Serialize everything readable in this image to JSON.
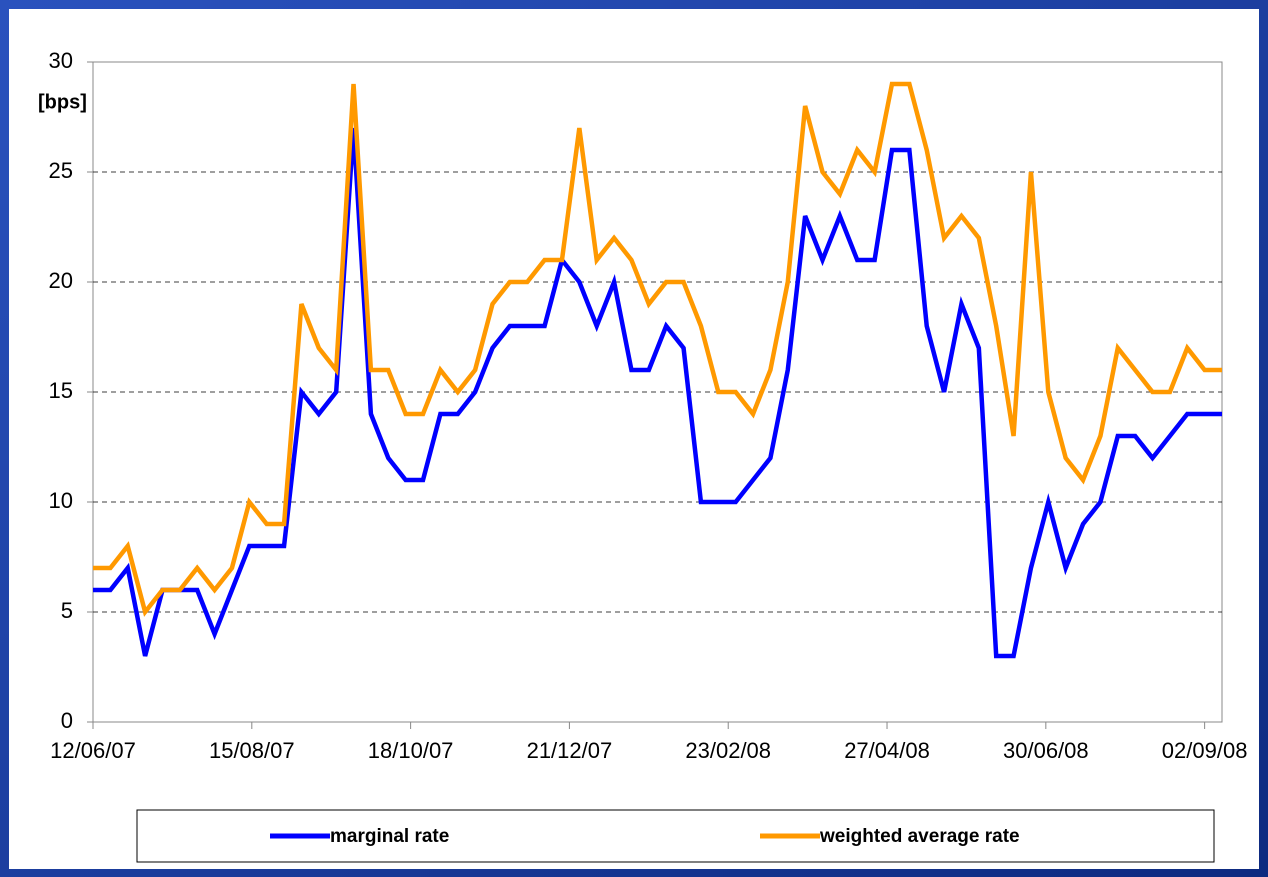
{
  "chart_data": {
    "type": "line",
    "y_label": "[bps]",
    "x": [
      "2007-06-12",
      "2007-06-19",
      "2007-06-26",
      "2007-07-03",
      "2007-07-10",
      "2007-07-17",
      "2007-07-24",
      "2007-07-31",
      "2007-08-07",
      "2007-08-14",
      "2007-08-21",
      "2007-08-28",
      "2007-09-04",
      "2007-09-11",
      "2007-09-18",
      "2007-09-25",
      "2007-10-02",
      "2007-10-09",
      "2007-10-16",
      "2007-10-23",
      "2007-10-30",
      "2007-11-06",
      "2007-11-13",
      "2007-11-20",
      "2007-11-27",
      "2007-12-04",
      "2007-12-11",
      "2007-12-18",
      "2007-12-25",
      "2008-01-01",
      "2008-01-08",
      "2008-01-15",
      "2008-01-22",
      "2008-01-29",
      "2008-02-05",
      "2008-02-12",
      "2008-02-19",
      "2008-02-26",
      "2008-03-04",
      "2008-03-11",
      "2008-03-18",
      "2008-03-25",
      "2008-04-01",
      "2008-04-08",
      "2008-04-15",
      "2008-04-22",
      "2008-04-29",
      "2008-05-06",
      "2008-05-13",
      "2008-05-20",
      "2008-05-27",
      "2008-06-03",
      "2008-06-10",
      "2008-06-17",
      "2008-06-24",
      "2008-07-01",
      "2008-07-08",
      "2008-07-15",
      "2008-07-22",
      "2008-07-29",
      "2008-08-05",
      "2008-08-12",
      "2008-08-19",
      "2008-08-26",
      "2008-09-02",
      "2008-09-09"
    ],
    "series": [
      {
        "name": "marginal rate",
        "color": "#0000ff",
        "values": [
          6,
          6,
          7,
          3,
          6,
          6,
          6,
          4,
          6,
          8,
          8,
          8,
          15,
          14,
          15,
          27,
          14,
          12,
          11,
          11,
          14,
          14,
          15,
          17,
          18,
          18,
          18,
          21,
          20,
          18,
          20,
          16,
          16,
          18,
          17,
          10,
          10,
          10,
          11,
          12,
          16,
          23,
          21,
          23,
          21,
          21,
          26,
          26,
          18,
          15,
          19,
          17,
          3,
          3,
          7,
          10,
          7,
          9,
          10,
          13,
          13,
          12,
          13,
          14,
          14,
          14
        ]
      },
      {
        "name": "weighted average rate",
        "color": "#ff9900",
        "values": [
          7,
          7,
          8,
          5,
          6,
          6,
          7,
          6,
          7,
          10,
          9,
          9,
          19,
          17,
          16,
          29,
          16,
          16,
          14,
          14,
          16,
          15,
          16,
          19,
          20,
          20,
          21,
          21,
          27,
          21,
          22,
          21,
          19,
          20,
          20,
          18,
          15,
          15,
          14,
          16,
          20,
          28,
          25,
          24,
          26,
          25,
          29,
          29,
          26,
          22,
          23,
          22,
          18,
          13,
          25,
          15,
          12,
          11,
          13,
          17,
          16,
          15,
          15,
          17,
          16,
          16
        ]
      }
    ],
    "xlim": [
      "2007-06-12",
      "2008-09-09"
    ],
    "xticks": [
      {
        "value": "2007-06-12",
        "label": "12/06/07"
      },
      {
        "value": "2007-08-15",
        "label": "15/08/07"
      },
      {
        "value": "2007-10-18",
        "label": "18/10/07"
      },
      {
        "value": "2007-12-21",
        "label": "21/12/07"
      },
      {
        "value": "2008-02-23",
        "label": "23/02/08"
      },
      {
        "value": "2008-04-27",
        "label": "27/04/08"
      },
      {
        "value": "2008-06-30",
        "label": "30/06/08"
      },
      {
        "value": "2008-09-02",
        "label": "02/09/08"
      }
    ],
    "ylim": [
      0,
      30
    ],
    "yticks": [
      0,
      5,
      10,
      15,
      20,
      25,
      30
    ],
    "grid": true,
    "legend": "bottom"
  }
}
